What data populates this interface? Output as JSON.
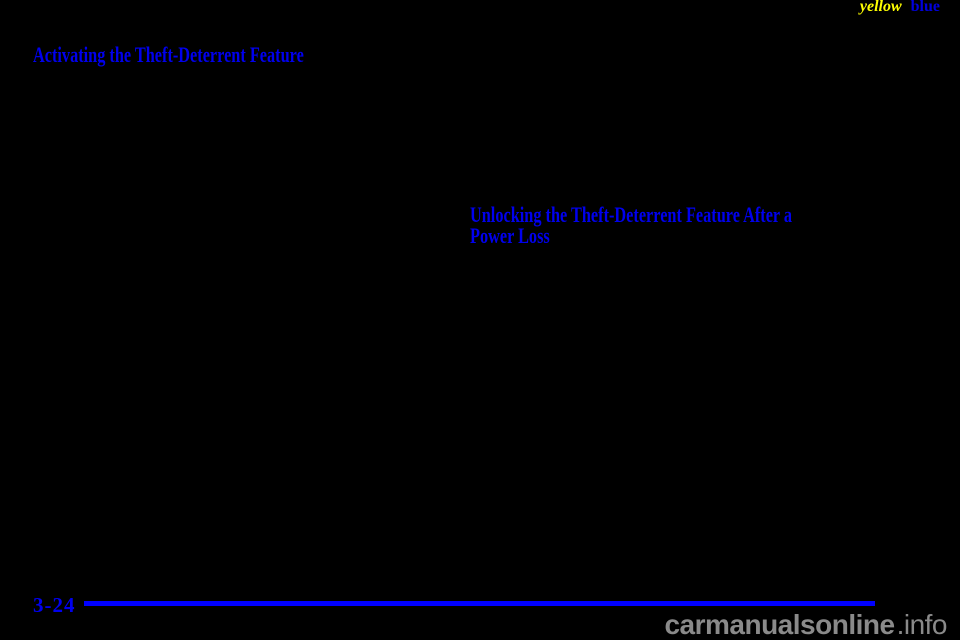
{
  "corner_tags": {
    "yellow_label": "yellow",
    "blue_label": "blue"
  },
  "headings": {
    "activating": "Activating the Theft-Deterrent Feature",
    "unlocking_lines": [
      "Unlocking the Theft-Deterrent Feature After a",
      "Power Loss"
    ]
  },
  "footer": {
    "page_number": "3-24"
  },
  "watermark": {
    "site_name": "carmanualsonline",
    "tld": ".info"
  },
  "colors": {
    "page_background": "#000000",
    "heading_blue": "#0000EE",
    "rule_blue": "#0000FF",
    "tag_yellow": "#FFFF00",
    "tag_blue": "#0000DD",
    "watermark_gray": "#8A8A8A"
  }
}
